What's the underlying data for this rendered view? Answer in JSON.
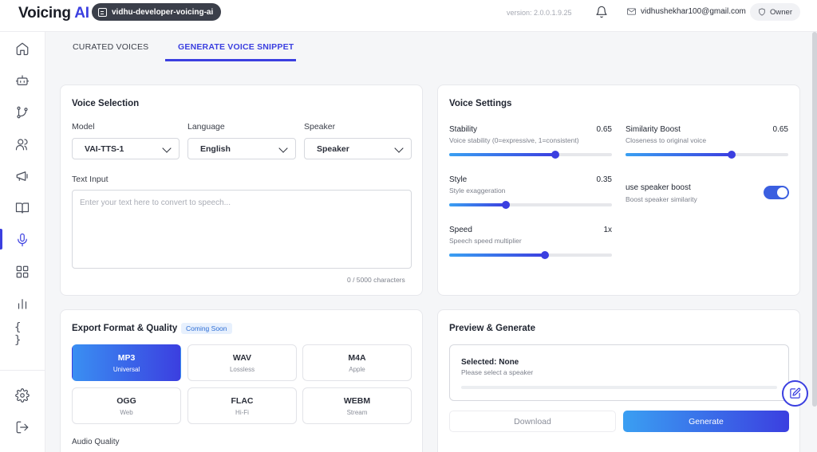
{
  "header": {
    "logo_main": "Voicing",
    "logo_accent": "AI",
    "workspace": "vidhu-developer-voicing-ai",
    "version": "version: 2.0.0.1.9.25",
    "email": "vidhushekhar100@gmail.com",
    "role": "Owner"
  },
  "sidebar": {
    "items": [
      {
        "icon": "home-icon"
      },
      {
        "icon": "bot-icon"
      },
      {
        "icon": "git-branch-icon"
      },
      {
        "icon": "users-icon"
      },
      {
        "icon": "megaphone-icon"
      },
      {
        "icon": "book-icon"
      },
      {
        "icon": "microphone-icon",
        "active": true
      },
      {
        "icon": "grid-icon"
      },
      {
        "icon": "bar-chart-icon"
      },
      {
        "icon": "braces-icon",
        "glyph": "{ }"
      }
    ],
    "bottom": [
      {
        "icon": "settings-icon"
      },
      {
        "icon": "logout-icon"
      }
    ]
  },
  "tabs": [
    {
      "label": "CURATED VOICES"
    },
    {
      "label": "GENERATE VOICE SNIPPET",
      "active": true
    }
  ],
  "voice_selection": {
    "title": "Voice Selection",
    "model_label": "Model",
    "model_value": "VAI-TTS-1",
    "language_label": "Language",
    "language_value": "English",
    "speaker_label": "Speaker",
    "speaker_value": "Speaker",
    "text_label": "Text Input",
    "text_placeholder": "Enter your text here to convert to speech...",
    "counter": "0 / 5000 characters"
  },
  "voice_settings": {
    "title": "Voice Settings",
    "stability": {
      "label": "Stability",
      "sub": "Voice stability (0=expressive, 1=consistent)",
      "value": "0.65",
      "fraction": 0.65
    },
    "similarity": {
      "label": "Similarity Boost",
      "sub": "Closeness to original voice",
      "value": "0.65",
      "fraction": 0.65
    },
    "style": {
      "label": "Style",
      "sub": "Style exaggeration",
      "value": "0.35",
      "fraction": 0.35
    },
    "speaker_boost": {
      "label": "use speaker boost",
      "sub": "Boost speaker similarity",
      "enabled": true
    },
    "speed": {
      "label": "Speed",
      "sub": "Speech speed multiplier",
      "value": "1x",
      "fraction": 0.59
    }
  },
  "export": {
    "title": "Export Format & Quality",
    "badge": "Coming Soon",
    "formats": [
      {
        "name": "MP3",
        "desc": "Universal",
        "selected": true
      },
      {
        "name": "WAV",
        "desc": "Lossless"
      },
      {
        "name": "M4A",
        "desc": "Apple"
      },
      {
        "name": "OGG",
        "desc": "Web"
      },
      {
        "name": "FLAC",
        "desc": "Hi-Fi"
      },
      {
        "name": "WEBM",
        "desc": "Stream"
      }
    ],
    "quality_label": "Audio Quality"
  },
  "preview": {
    "title": "Preview & Generate",
    "selected": "Selected: None",
    "hint": "Please select a speaker",
    "download_label": "Download",
    "generate_label": "Generate"
  },
  "colors": {
    "accent": "#3b3fe0",
    "gradient_start": "#3aa0f2"
  }
}
